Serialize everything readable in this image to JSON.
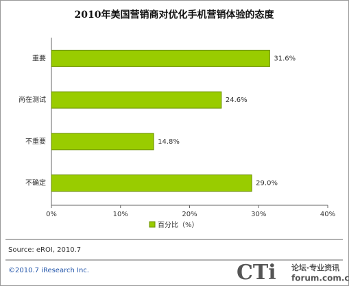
{
  "chart_data": {
    "type": "hbar",
    "title": "2010年美国营销商对优化手机营销体验的态度",
    "categories": [
      "重要",
      "尚在测试",
      "不重要",
      "不确定"
    ],
    "series": [
      {
        "name": "百分比（%）",
        "color": "#99cc00",
        "values": [
          31.6,
          24.6,
          14.8,
          29.0
        ],
        "value_labels": [
          "31.6%",
          "24.6%",
          "14.8%",
          "29.0%"
        ]
      }
    ],
    "xlim": [
      0,
      40
    ],
    "xticks": [
      {
        "value": 0,
        "label": "0%"
      },
      {
        "value": 10,
        "label": "10%"
      },
      {
        "value": 20,
        "label": "20%"
      },
      {
        "value": 30,
        "label": "30%"
      },
      {
        "value": 40,
        "label": "40%"
      }
    ],
    "source": "Source: eROI, 2010.7",
    "copyright": "©2010.7 iResearch Inc.",
    "watermark": [
      "CTi",
      "论坛·专业资讯",
      "forum.com.cn"
    ]
  }
}
